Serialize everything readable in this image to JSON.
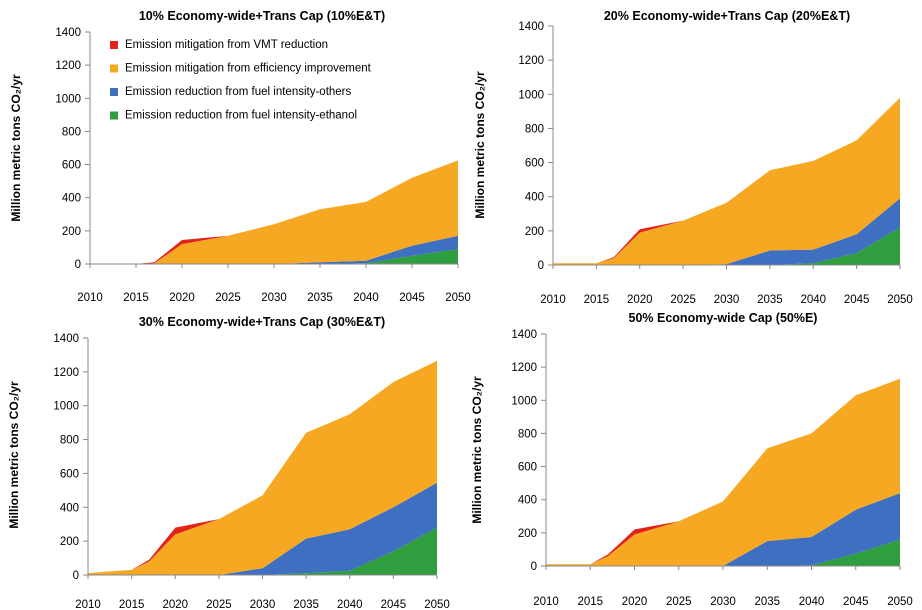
{
  "chart_data": [
    {
      "type": "area",
      "title": "10% Economy-wide+Trans Cap (10%E&T)",
      "ylabel": "Million metric tons CO₂/yr",
      "xlabel": "",
      "ylim": [
        0,
        1400
      ],
      "yticks": [
        "0",
        "200",
        "400",
        "600",
        "800",
        "1000",
        "1200",
        "1400"
      ],
      "xticks": [
        "2010",
        "2015",
        "2020",
        "2025",
        "2030",
        "2035",
        "2040",
        "2045",
        "2050"
      ],
      "x": [
        2010,
        2012,
        2015,
        2017,
        2020,
        2025,
        2030,
        2035,
        2040,
        2045,
        2050
      ],
      "legend": true,
      "series": [
        {
          "name": "Emission reduction from fuel intensity-ethanol",
          "color": "#2e9e3e",
          "values": [
            0,
            0,
            0,
            0,
            0,
            0,
            0,
            0,
            5,
            50,
            90
          ]
        },
        {
          "name": "Emission reduction from fuel intensity-others",
          "color": "#3f6fc1",
          "values": [
            0,
            0,
            0,
            0,
            0,
            0,
            0,
            10,
            15,
            60,
            80
          ]
        },
        {
          "name": "Emission mitigation from efficiency improvement",
          "color": "#f7a823",
          "values": [
            0,
            0,
            0,
            5,
            120,
            170,
            240,
            320,
            355,
            410,
            455
          ]
        },
        {
          "name": "Emission mitigation from VMT reduction",
          "color": "#e2231a",
          "values": [
            0,
            0,
            0,
            5,
            25,
            0,
            0,
            0,
            0,
            0,
            0
          ]
        }
      ]
    },
    {
      "type": "area",
      "title": "20% Economy-wide+Trans Cap (20%E&T)",
      "ylabel": "Million metric tons CO₂/yr",
      "xlabel": "",
      "ylim": [
        0,
        1400
      ],
      "yticks": [
        "0",
        "200",
        "400",
        "600",
        "800",
        "1000",
        "1200",
        "1400"
      ],
      "xticks": [
        "2010",
        "2015",
        "2020",
        "2025",
        "2030",
        "2035",
        "2040",
        "2045",
        "2050"
      ],
      "x": [
        2010,
        2012,
        2015,
        2017,
        2020,
        2025,
        2030,
        2035,
        2040,
        2045,
        2050
      ],
      "legend": false,
      "series": [
        {
          "name": "Emission reduction from fuel intensity-ethanol",
          "color": "#2e9e3e",
          "values": [
            0,
            0,
            0,
            0,
            0,
            0,
            0,
            0,
            10,
            70,
            220
          ]
        },
        {
          "name": "Emission reduction from fuel intensity-others",
          "color": "#3f6fc1",
          "values": [
            0,
            0,
            0,
            0,
            0,
            0,
            5,
            85,
            80,
            110,
            170
          ]
        },
        {
          "name": "Emission mitigation from efficiency improvement",
          "color": "#f7a823",
          "values": [
            10,
            10,
            10,
            40,
            190,
            260,
            360,
            470,
            520,
            550,
            590
          ]
        },
        {
          "name": "Emission mitigation from VMT reduction",
          "color": "#e2231a",
          "values": [
            0,
            0,
            0,
            5,
            20,
            0,
            0,
            0,
            0,
            0,
            0
          ]
        }
      ]
    },
    {
      "type": "area",
      "title": "30% Economy-wide+Trans Cap (30%E&T)",
      "ylabel": "Million metric tons CO₂/yr",
      "xlabel": "",
      "ylim": [
        0,
        1400
      ],
      "yticks": [
        "0",
        "200",
        "400",
        "600",
        "800",
        "1000",
        "1200",
        "1400"
      ],
      "xticks": [
        "2010",
        "2015",
        "2020",
        "2025",
        "2030",
        "2035",
        "2040",
        "2045",
        "2050"
      ],
      "x": [
        2010,
        2012,
        2015,
        2017,
        2020,
        2025,
        2030,
        2035,
        2040,
        2045,
        2050
      ],
      "legend": false,
      "series": [
        {
          "name": "Emission reduction from fuel intensity-ethanol",
          "color": "#2e9e3e",
          "values": [
            0,
            0,
            0,
            0,
            0,
            0,
            0,
            10,
            25,
            140,
            280
          ]
        },
        {
          "name": "Emission reduction from fuel intensity-others",
          "color": "#3f6fc1",
          "values": [
            0,
            0,
            0,
            0,
            0,
            0,
            40,
            205,
            245,
            260,
            265
          ]
        },
        {
          "name": "Emission mitigation from efficiency improvement",
          "color": "#f7a823",
          "values": [
            10,
            20,
            30,
            80,
            240,
            330,
            430,
            625,
            680,
            740,
            720
          ]
        },
        {
          "name": "Emission mitigation from VMT reduction",
          "color": "#e2231a",
          "values": [
            0,
            0,
            0,
            10,
            40,
            0,
            0,
            0,
            0,
            0,
            0
          ]
        }
      ]
    },
    {
      "type": "area",
      "title": "50% Economy-wide Cap (50%E)",
      "ylabel": "Million metric tons CO₂/yr",
      "xlabel": "",
      "ylim": [
        0,
        1400
      ],
      "yticks": [
        "0",
        "200",
        "400",
        "600",
        "800",
        "1000",
        "1200",
        "1400"
      ],
      "xticks": [
        "2010",
        "2015",
        "2020",
        "2025",
        "2030",
        "2035",
        "2040",
        "2045",
        "2050"
      ],
      "x": [
        2010,
        2012,
        2015,
        2017,
        2020,
        2025,
        2030,
        2035,
        2040,
        2045,
        2050
      ],
      "legend": false,
      "series": [
        {
          "name": "Emission reduction from fuel intensity-ethanol",
          "color": "#2e9e3e",
          "values": [
            0,
            0,
            0,
            0,
            0,
            0,
            0,
            0,
            5,
            75,
            160
          ]
        },
        {
          "name": "Emission reduction from fuel intensity-others",
          "color": "#3f6fc1",
          "values": [
            0,
            0,
            0,
            0,
            0,
            0,
            0,
            150,
            170,
            265,
            280
          ]
        },
        {
          "name": "Emission mitigation from efficiency improvement",
          "color": "#f7a823",
          "values": [
            10,
            10,
            10,
            60,
            190,
            270,
            390,
            560,
            625,
            690,
            690
          ]
        },
        {
          "name": "Emission mitigation from VMT reduction",
          "color": "#e2231a",
          "values": [
            0,
            0,
            0,
            10,
            30,
            0,
            0,
            0,
            0,
            0,
            0
          ]
        }
      ]
    }
  ]
}
